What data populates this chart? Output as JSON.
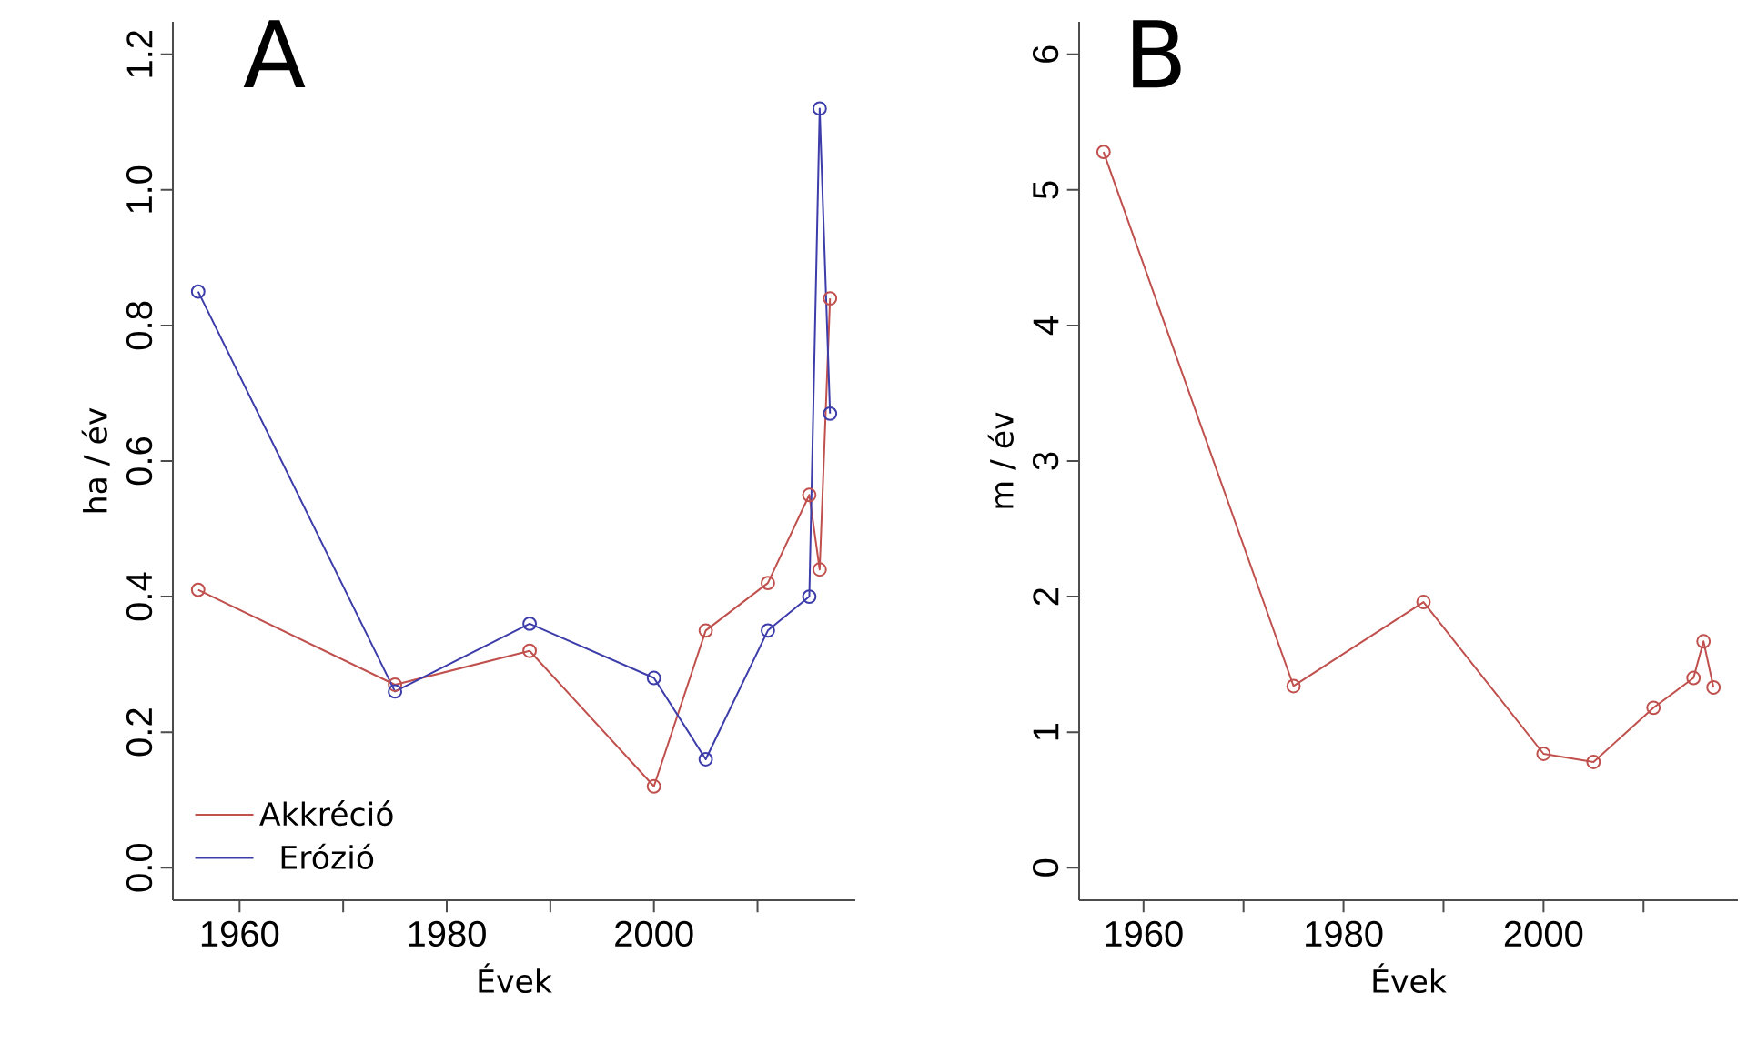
{
  "chart_data": [
    {
      "type": "line",
      "title": "A",
      "xlabel": "Évek",
      "ylabel": "ha / év",
      "marker": "circle",
      "legend": "bottom left",
      "xlim": [
        1953.56,
        2019.44
      ],
      "ylim": [
        -0.048,
        1.248
      ],
      "xticks": [
        1960,
        {
          "value": 1970,
          "label": null
        },
        1980,
        {
          "value": 1990,
          "label": null
        },
        2000,
        {
          "value": 2010,
          "label": null
        }
      ],
      "yticks": [
        {
          "value": 0,
          "label": "0.0"
        },
        0.2,
        0.4,
        0.6,
        0.8,
        {
          "value": 1,
          "label": "1.0"
        },
        1.2
      ],
      "series": [
        {
          "name": "Akkréció",
          "color": "#c0504d",
          "x": [
            1956,
            1975,
            1988,
            2000,
            2005,
            2011,
            2015,
            2016,
            2017
          ],
          "values": [
            0.41,
            0.27,
            0.32,
            0.12,
            0.35,
            0.42,
            0.55,
            0.44,
            0.84
          ]
        },
        {
          "name": "Erózió",
          "color": "#3c3caa",
          "x": [
            1956,
            1975,
            1988,
            2000,
            2005,
            2011,
            2015,
            2016,
            2017
          ],
          "values": [
            0.85,
            0.26,
            0.36,
            0.28,
            0.16,
            0.35,
            0.4,
            1.12,
            0.67
          ]
        }
      ]
    },
    {
      "type": "line",
      "title": "B",
      "xlabel": "Évek",
      "ylabel": "m / év",
      "marker": "circle",
      "xlim": [
        1953.56,
        2019.44
      ],
      "ylim": [
        -0.24,
        6.24
      ],
      "xticks": [
        1960,
        {
          "value": 1970,
          "label": null
        },
        1980,
        {
          "value": 1990,
          "label": null
        },
        2000,
        {
          "value": 2010,
          "label": null
        }
      ],
      "yticks": [
        0,
        1,
        2,
        3,
        4,
        5,
        6
      ],
      "series": [
        {
          "color": "#c0504d",
          "x": [
            1956,
            1975,
            1988,
            2000,
            2005,
            2011,
            2015,
            2016,
            2017
          ],
          "values": [
            5.28,
            1.34,
            1.96,
            0.84,
            0.78,
            1.18,
            1.4,
            1.67,
            1.33
          ]
        }
      ]
    }
  ]
}
